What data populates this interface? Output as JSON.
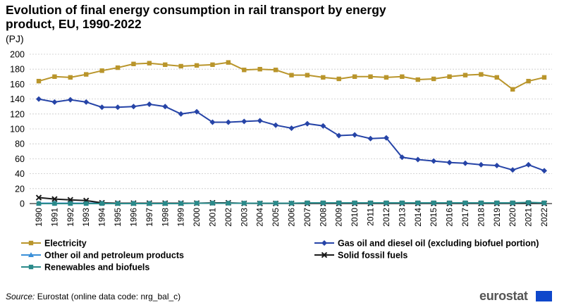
{
  "title": "Evolution of final energy consumption in rail transport by energy product, EU, 1990-2022",
  "source_label": "Source:",
  "source_text": "Eurostat (online data code: nrg_bal_c)",
  "logo_text": "eurostat",
  "chart_data": {
    "type": "line",
    "title": "Evolution of final energy consumption in rail transport by energy product, EU, 1990-2022",
    "ylabel": "(PJ)",
    "xlabel": "",
    "ylim": [
      0,
      200
    ],
    "yticks": [
      0,
      20,
      40,
      60,
      80,
      100,
      120,
      140,
      160,
      180,
      200
    ],
    "grid": true,
    "legend_position": "bottom",
    "categories": [
      "1990",
      "1991",
      "1992",
      "1993",
      "1994",
      "1995",
      "1996",
      "1997",
      "1998",
      "1999",
      "2000",
      "2001",
      "2002",
      "2003",
      "2004",
      "2005",
      "2006",
      "2007",
      "2008",
      "2009",
      "2010",
      "2011",
      "2012",
      "2013",
      "2014",
      "2015",
      "2016",
      "2017",
      "2018",
      "2019",
      "2020",
      "2021",
      "2022"
    ],
    "series": [
      {
        "name": "Electricity",
        "color": "#b9952b",
        "marker": "square",
        "values": [
          164,
          170,
          169,
          173,
          178,
          182,
          187,
          188,
          186,
          184,
          185,
          186,
          189,
          179,
          180,
          179,
          172,
          172,
          169,
          167,
          170,
          170,
          169,
          170,
          166,
          167,
          170,
          172,
          173,
          169,
          153,
          164,
          169
        ]
      },
      {
        "name": "Gas oil and diesel oil (excluding biofuel portion)",
        "color": "#2644a7",
        "marker": "diamond",
        "values": [
          140,
          136,
          139,
          136,
          129,
          129,
          130,
          133,
          130,
          120,
          123,
          109,
          109,
          110,
          111,
          105,
          101,
          107,
          104,
          91,
          92,
          87,
          88,
          62,
          59,
          57,
          55,
          54,
          52,
          51,
          45,
          52,
          44
        ]
      },
      {
        "name": "Other oil and petroleum products",
        "color": "#3a8fd8",
        "marker": "triangle",
        "values": [
          0.5,
          0.5,
          0.5,
          0.5,
          0.5,
          0.5,
          0.5,
          0.5,
          0.5,
          0.5,
          0.5,
          0.5,
          0.5,
          0.5,
          0.5,
          0.5,
          0.5,
          0.5,
          0.5,
          0.5,
          0.5,
          0.5,
          0.5,
          0.5,
          0.5,
          0.5,
          0.5,
          0.5,
          0.5,
          0.5,
          0.5,
          0.5,
          0.5
        ]
      },
      {
        "name": "Solid fossil fuels",
        "color": "#1a1a1a",
        "marker": "x",
        "values": [
          8,
          6,
          5,
          4,
          1,
          0.5,
          0.5,
          0.5,
          0.5,
          0.5,
          0.5,
          1,
          1,
          0.3,
          0.2,
          0.2,
          0.2,
          0.2,
          0.2,
          0.2,
          0.2,
          0.2,
          0.2,
          0.2,
          0.2,
          0.2,
          0.2,
          0.2,
          0.2,
          0.2,
          0.2,
          0.2,
          0.2
        ]
      },
      {
        "name": "Renewables and biofuels",
        "color": "#2a8a8a",
        "marker": "square",
        "values": [
          0,
          0,
          0,
          0,
          0,
          0,
          0,
          0,
          0,
          0,
          0.5,
          0.5,
          0.5,
          0.5,
          0.5,
          0.5,
          0.5,
          1,
          1,
          1,
          1,
          1,
          1,
          1,
          1,
          1,
          1,
          1,
          1,
          1,
          1,
          1.5,
          1
        ]
      }
    ]
  }
}
